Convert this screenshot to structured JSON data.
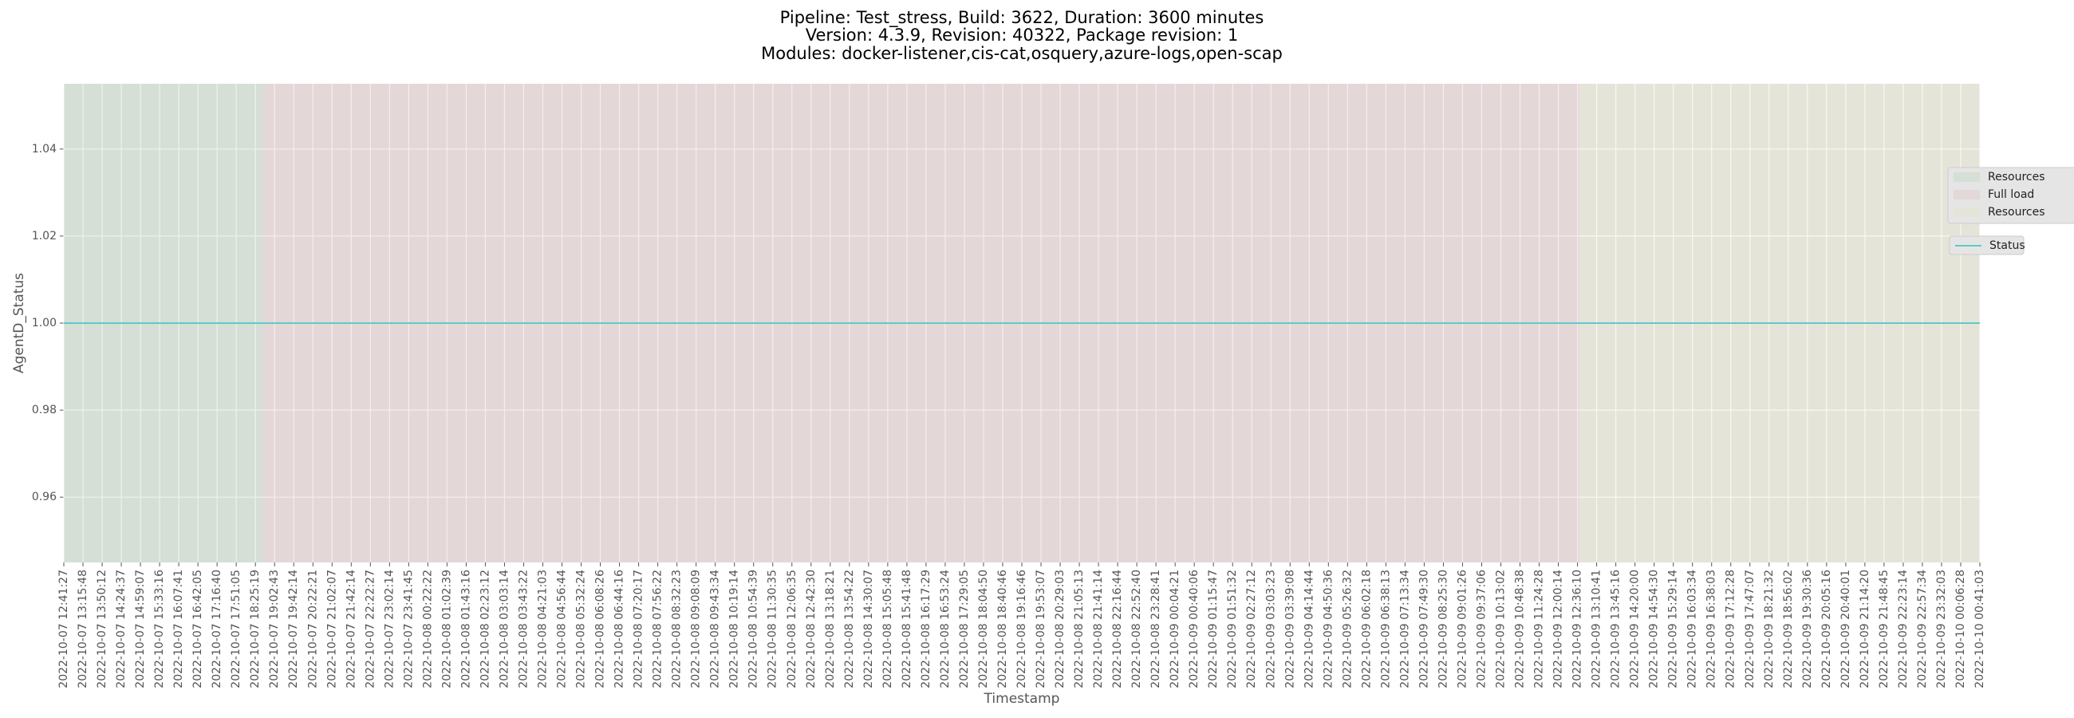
{
  "chart_data": {
    "type": "line",
    "title": [
      "Pipeline: Test_stress, Build: 3622, Duration: 3600 minutes",
      "Version: 4.3.9, Revision: 40322, Package revision: 1",
      "Modules: docker-listener,cis-cat,osquery,azure-logs,open-scap"
    ],
    "xlabel": "Timestamp",
    "ylabel": "AgentD_Status",
    "categories": [
      "2022-10-07 12:41:27",
      "2022-10-07 13:15:48",
      "2022-10-07 13:50:12",
      "2022-10-07 14:24:37",
      "2022-10-07 14:59:07",
      "2022-10-07 15:33:16",
      "2022-10-07 16:07:41",
      "2022-10-07 16:42:05",
      "2022-10-07 17:16:40",
      "2022-10-07 17:51:05",
      "2022-10-07 18:25:19",
      "2022-10-07 19:02:43",
      "2022-10-07 19:42:14",
      "2022-10-07 20:22:21",
      "2022-10-07 21:02:07",
      "2022-10-07 21:42:14",
      "2022-10-07 22:22:27",
      "2022-10-07 23:02:14",
      "2022-10-07 23:41:45",
      "2022-10-08 00:22:22",
      "2022-10-08 01:02:39",
      "2022-10-08 01:43:16",
      "2022-10-08 02:23:12",
      "2022-10-08 03:03:14",
      "2022-10-08 03:43:22",
      "2022-10-08 04:21:03",
      "2022-10-08 04:56:44",
      "2022-10-08 05:32:24",
      "2022-10-08 06:08:26",
      "2022-10-08 06:44:16",
      "2022-10-08 07:20:17",
      "2022-10-08 07:56:22",
      "2022-10-08 08:32:23",
      "2022-10-08 09:08:09",
      "2022-10-08 09:43:34",
      "2022-10-08 10:19:14",
      "2022-10-08 10:54:39",
      "2022-10-08 11:30:35",
      "2022-10-08 12:06:35",
      "2022-10-08 12:42:30",
      "2022-10-08 13:18:21",
      "2022-10-08 13:54:22",
      "2022-10-08 14:30:07",
      "2022-10-08 15:05:48",
      "2022-10-08 15:41:48",
      "2022-10-08 16:17:29",
      "2022-10-08 16:53:24",
      "2022-10-08 17:29:05",
      "2022-10-08 18:04:50",
      "2022-10-08 18:40:46",
      "2022-10-08 19:16:46",
      "2022-10-08 19:53:07",
      "2022-10-08 20:29:03",
      "2022-10-08 21:05:13",
      "2022-10-08 21:41:14",
      "2022-10-08 22:16:44",
      "2022-10-08 22:52:40",
      "2022-10-08 23:28:41",
      "2022-10-09 00:04:21",
      "2022-10-09 00:40:06",
      "2022-10-09 01:15:47",
      "2022-10-09 01:51:32",
      "2022-10-09 02:27:12",
      "2022-10-09 03:03:23",
      "2022-10-09 03:39:08",
      "2022-10-09 04:14:44",
      "2022-10-09 04:50:36",
      "2022-10-09 05:26:32",
      "2022-10-09 06:02:18",
      "2022-10-09 06:38:13",
      "2022-10-09 07:13:34",
      "2022-10-09 07:49:30",
      "2022-10-09 08:25:30",
      "2022-10-09 09:01:26",
      "2022-10-09 09:37:06",
      "2022-10-09 10:13:02",
      "2022-10-09 10:48:38",
      "2022-10-09 11:24:28",
      "2022-10-09 12:00:14",
      "2022-10-09 12:36:10",
      "2022-10-09 13:10:41",
      "2022-10-09 13:45:16",
      "2022-10-09 14:20:00",
      "2022-10-09 14:54:30",
      "2022-10-09 15:29:14",
      "2022-10-09 16:03:34",
      "2022-10-09 16:38:03",
      "2022-10-09 17:12:28",
      "2022-10-09 17:47:07",
      "2022-10-09 18:21:32",
      "2022-10-09 18:56:02",
      "2022-10-09 19:30:36",
      "2022-10-09 20:05:16",
      "2022-10-09 20:40:01",
      "2022-10-09 21:14:20",
      "2022-10-09 21:48:45",
      "2022-10-09 22:23:14",
      "2022-10-09 22:57:34",
      "2022-10-09 23:32:03",
      "2022-10-10 00:06:28",
      "2022-10-10 00:41:03"
    ],
    "series": [
      {
        "name": "Status",
        "color": "#5fcaca",
        "values": [
          1,
          1,
          1,
          1,
          1,
          1,
          1,
          1,
          1,
          1,
          1,
          1,
          1,
          1,
          1,
          1,
          1,
          1,
          1,
          1,
          1,
          1,
          1,
          1,
          1,
          1,
          1,
          1,
          1,
          1,
          1,
          1,
          1,
          1,
          1,
          1,
          1,
          1,
          1,
          1,
          1,
          1,
          1,
          1,
          1,
          1,
          1,
          1,
          1,
          1,
          1,
          1,
          1,
          1,
          1,
          1,
          1,
          1,
          1,
          1,
          1,
          1,
          1,
          1,
          1,
          1,
          1,
          1,
          1,
          1,
          1,
          1,
          1,
          1,
          1,
          1,
          1,
          1,
          1,
          1,
          1,
          1,
          1,
          1,
          1,
          1,
          1,
          1,
          1,
          1,
          1,
          1,
          1,
          1,
          1,
          1,
          1,
          1,
          1,
          1,
          1
        ]
      }
    ],
    "spans": [
      {
        "name": "Resources",
        "color": "#95c795",
        "start": 0,
        "end": 10.4
      },
      {
        "name": "Full load",
        "color": "#dba0a4",
        "start": 10.4,
        "end": 79.1
      },
      {
        "name": "Resources",
        "color": "#e5e0a9",
        "start": 79.1,
        "end": 100
      }
    ],
    "xlim": [
      0,
      100
    ],
    "ylim": [
      0.945,
      1.055
    ],
    "yticks": [
      0.96,
      0.98,
      {
        "value": 1,
        "label": "1.00"
      },
      1.02,
      1.04
    ],
    "grid": true,
    "legend": "center right"
  }
}
